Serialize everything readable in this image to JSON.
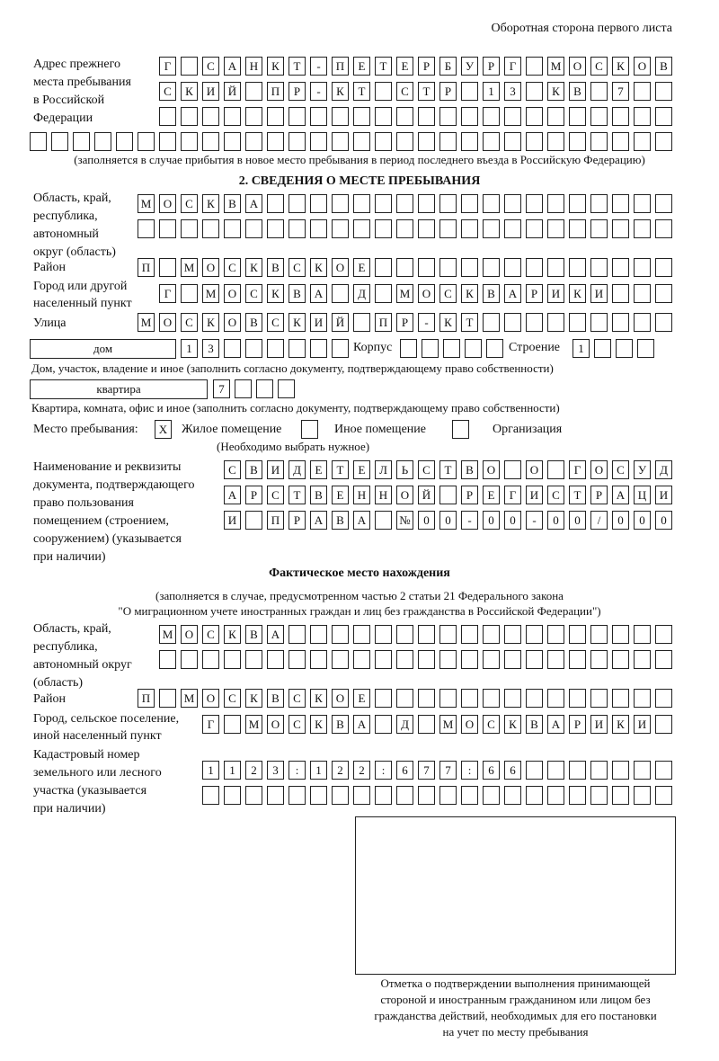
{
  "header": "Оборотная сторона первого листа",
  "prev_address": {
    "label": [
      "Адрес прежнего",
      "места пребывания",
      "в Российской",
      "Федерации"
    ],
    "rows": [
      [
        "Г",
        "",
        "С",
        "А",
        "Н",
        "К",
        "Т",
        "-",
        "П",
        "Е",
        "Т",
        "Е",
        "Р",
        "Б",
        "У",
        "Р",
        "Г",
        "",
        "М",
        "О",
        "С",
        "К",
        "О",
        "В"
      ],
      [
        "С",
        "К",
        "И",
        "Й",
        "",
        "П",
        "Р",
        "-",
        "К",
        "Т",
        "",
        "С",
        "Т",
        "Р",
        "",
        "1",
        "3",
        "",
        "К",
        "В",
        "",
        "7",
        "",
        ""
      ],
      [
        "",
        "",
        "",
        "",
        "",
        "",
        "",
        "",
        "",
        "",
        "",
        "",
        "",
        "",
        "",
        "",
        "",
        "",
        "",
        "",
        "",
        "",
        "",
        ""
      ],
      [
        "",
        "",
        "",
        "",
        "",
        "",
        "",
        "",
        "",
        "",
        "",
        "",
        "",
        "",
        "",
        "",
        "",
        "",
        "",
        "",
        "",
        "",
        "",
        "",
        "",
        "",
        "",
        "",
        "",
        ""
      ]
    ],
    "note": "(заполняется в случае прибытия в новое место пребывания в период последнего въезда в Российскую Федерацию)"
  },
  "section2": {
    "title": "2. СВЕДЕНИЯ О МЕСТЕ ПРЕБЫВАНИЯ",
    "region_label": [
      "Область, край,",
      "республика,",
      "автономный",
      "округ (область)"
    ],
    "region_rows": [
      [
        "М",
        "О",
        "С",
        "К",
        "В",
        "А",
        "",
        "",
        "",
        "",
        "",
        "",
        "",
        "",
        "",
        "",
        "",
        "",
        "",
        "",
        "",
        "",
        "",
        "",
        ""
      ],
      [
        "",
        "",
        "",
        "",
        "",
        "",
        "",
        "",
        "",
        "",
        "",
        "",
        "",
        "",
        "",
        "",
        "",
        "",
        "",
        "",
        "",
        "",
        "",
        "",
        ""
      ]
    ],
    "district_label": "Район",
    "district": [
      "П",
      "",
      "М",
      "О",
      "С",
      "К",
      "В",
      "С",
      "К",
      "О",
      "Е",
      "",
      "",
      "",
      "",
      "",
      "",
      "",
      "",
      "",
      "",
      "",
      "",
      "",
      ""
    ],
    "city_label": [
      "Город или другой",
      "населенный пункт"
    ],
    "city": [
      "Г",
      "",
      "М",
      "О",
      "С",
      "К",
      "В",
      "А",
      "",
      "Д",
      "",
      "М",
      "О",
      "С",
      "К",
      "В",
      "А",
      "Р",
      "И",
      "К",
      "И",
      "",
      "",
      ""
    ],
    "street_label": "Улица",
    "street": [
      "М",
      "О",
      "С",
      "К",
      "О",
      "В",
      "С",
      "К",
      "И",
      "Й",
      "",
      "П",
      "Р",
      "-",
      "К",
      "Т",
      "",
      "",
      "",
      "",
      "",
      "",
      "",
      "",
      ""
    ],
    "house_type": "дом",
    "house": [
      "1",
      "3",
      "",
      "",
      "",
      "",
      "",
      ""
    ],
    "korpus_label": "Корпус",
    "korpus": [
      "",
      "",
      "",
      "",
      ""
    ],
    "building_label": "Строение",
    "building": [
      "1",
      "",
      "",
      ""
    ],
    "house_note": "Дом, участок, владение и иное (заполнить согласно документу, подтверждающему право собственности)",
    "flat_type": "квартира",
    "flat": [
      "7",
      "",
      "",
      ""
    ],
    "flat_note": "Квартира, комната, офис и иное (заполнить согласно документу, подтверждающему право собственности)",
    "stay_label": "Место пребывания:",
    "stay_options": [
      {
        "label": "Жилое помещение",
        "mark": "X"
      },
      {
        "label": "Иное помещение",
        "mark": ""
      },
      {
        "label": "Организация",
        "mark": ""
      }
    ],
    "stay_note": "(Необходимо выбрать нужное)",
    "doc_label": [
      "Наименование и реквизиты",
      "документа, подтверждающего",
      "право пользования",
      "помещением (строением,",
      "сооружением) (указывается",
      "при наличии)"
    ],
    "doc_rows": [
      [
        "С",
        "В",
        "И",
        "Д",
        "Е",
        "Т",
        "Е",
        "Л",
        "Ь",
        "С",
        "Т",
        "В",
        "О",
        "",
        "О",
        "",
        "Г",
        "О",
        "С",
        "У",
        "Д"
      ],
      [
        "А",
        "Р",
        "С",
        "Т",
        "В",
        "Е",
        "Н",
        "Н",
        "О",
        "Й",
        "",
        "Р",
        "Е",
        "Г",
        "И",
        "С",
        "Т",
        "Р",
        "А",
        "Ц",
        "И"
      ],
      [
        "И",
        "",
        "П",
        "Р",
        "А",
        "В",
        "А",
        "",
        "№",
        "0",
        "0",
        "-",
        "0",
        "0",
        "-",
        "0",
        "0",
        "/",
        "0",
        "0",
        "0"
      ]
    ]
  },
  "actual": {
    "title": "Фактическое место нахождения",
    "note1": "(заполняется в случае, предусмотренном частью 2 статьи 21 Федерального закона",
    "note2": "\"О миграционном учете иностранных граждан и лиц без гражданства в Российской Федерации\")",
    "region_label": [
      "Область, край,",
      "республика,",
      "автономный округ",
      "(область)"
    ],
    "region_rows": [
      [
        "М",
        "О",
        "С",
        "К",
        "В",
        "А",
        "",
        "",
        "",
        "",
        "",
        "",
        "",
        "",
        "",
        "",
        "",
        "",
        "",
        "",
        "",
        "",
        "",
        ""
      ],
      [
        "",
        "",
        "",
        "",
        "",
        "",
        "",
        "",
        "",
        "",
        "",
        "",
        "",
        "",
        "",
        "",
        "",
        "",
        "",
        "",
        "",
        "",
        "",
        ""
      ]
    ],
    "district_label": "Район",
    "district": [
      "П",
      "",
      "М",
      "О",
      "С",
      "К",
      "В",
      "С",
      "К",
      "О",
      "Е",
      "",
      "",
      "",
      "",
      "",
      "",
      "",
      "",
      "",
      "",
      "",
      "",
      "",
      ""
    ],
    "city_label": [
      "Город, сельское поселение,",
      "иной населенный пункт"
    ],
    "city": [
      "Г",
      "",
      "М",
      "О",
      "С",
      "К",
      "В",
      "А",
      "",
      "Д",
      "",
      "М",
      "О",
      "С",
      "К",
      "В",
      "А",
      "Р",
      "И",
      "К",
      "И",
      ""
    ],
    "cadastre_label": [
      "Кадастровый номер",
      "земельного или лесного",
      "участка (указывается",
      "при наличии)"
    ],
    "cadastre_rows": [
      [
        "1",
        "1",
        "2",
        "3",
        ":",
        "1",
        "2",
        "2",
        ":",
        "6",
        "7",
        "7",
        ":",
        "6",
        "6",
        "",
        "",
        "",
        "",
        "",
        "",
        ""
      ],
      [
        "",
        "",
        "",
        "",
        "",
        "",
        "",
        "",
        "",
        "",
        "",
        "",
        "",
        "",
        "",
        "",
        "",
        "",
        "",
        "",
        "",
        ""
      ]
    ]
  },
  "stamp_caption": [
    "Отметка о подтверждении выполнения принимающей",
    "стороной и иностранным гражданином или лицом без",
    "гражданства действий, необходимых для его постановки",
    "на учет по месту пребывания"
  ]
}
